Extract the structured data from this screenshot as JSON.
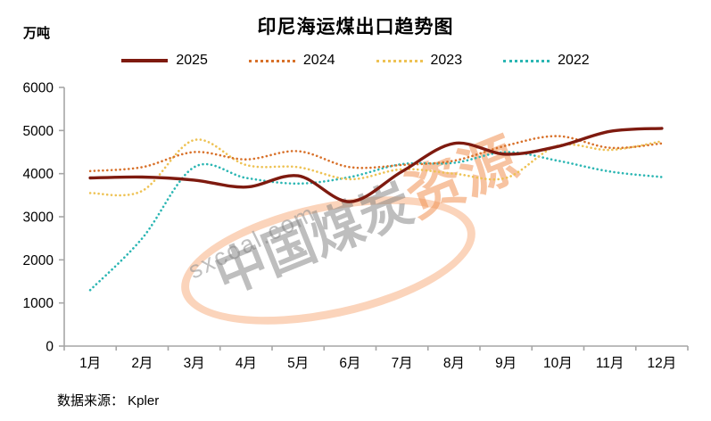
{
  "source": "数据来源： Kpler",
  "watermark": {
    "domain": "sxcoal.com",
    "brand_gray": "中国煤炭",
    "brand_accent": "资源",
    "accent_color": "#ED7D31"
  },
  "chart_data": {
    "type": "line",
    "title": "印尼海运煤出口趋势图",
    "ylabel": "万吨",
    "xlabel": "",
    "ylim": [
      0,
      6000
    ],
    "y_ticks": [
      0,
      1000,
      2000,
      3000,
      4000,
      5000,
      6000
    ],
    "grid": false,
    "legend_position": "top",
    "categories": [
      "1月",
      "2月",
      "3月",
      "4月",
      "5月",
      "6月",
      "7月",
      "8月",
      "9月",
      "10月",
      "11月",
      "12月"
    ],
    "axis_color": "#A6A6A6",
    "series": [
      {
        "name": "2025",
        "style": "solid",
        "color": "#7E1A0F",
        "values": [
          3900,
          3920,
          3850,
          3690,
          3950,
          3350,
          4050,
          4700,
          4450,
          4630,
          4980,
          5050
        ]
      },
      {
        "name": "2024",
        "style": "dotted",
        "color": "#D8712A",
        "values": [
          4060,
          4150,
          4500,
          4330,
          4520,
          4150,
          4200,
          4300,
          4650,
          4870,
          4600,
          4700
        ]
      },
      {
        "name": "2023",
        "style": "dotted",
        "color": "#EEC254",
        "values": [
          3550,
          3600,
          4780,
          4200,
          4150,
          3870,
          4100,
          4000,
          3900,
          4650,
          4550,
          4750
        ]
      },
      {
        "name": "2022",
        "style": "dotted",
        "color": "#2BB6B3",
        "values": [
          1300,
          2500,
          4150,
          3900,
          3770,
          3920,
          4220,
          4250,
          4500,
          4300,
          4050,
          3920
        ]
      }
    ]
  }
}
